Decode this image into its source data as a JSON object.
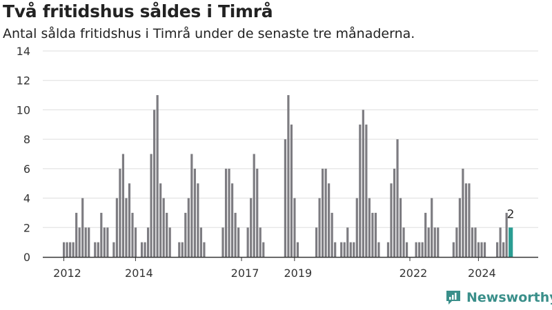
{
  "title": "Två fritidshus såldes i Timrå",
  "subtitle": "Antal sålda fritidshus i Timrå under de senaste tre månaderna.",
  "brand": "Newsworthy",
  "colors": {
    "bar": "#7d7c81",
    "highlight": "#2a9d92",
    "grid": "#dddddd",
    "axis": "#333333",
    "brand": "#3a8f8a"
  },
  "chart_data": {
    "type": "bar",
    "ylim": [
      0,
      14
    ],
    "yticks": [
      0,
      2,
      4,
      6,
      8,
      10,
      12,
      14
    ],
    "xticks": [
      "2012",
      "2014",
      "2017",
      "2019",
      "2022",
      "2024"
    ],
    "series": [
      {
        "values": [
          1,
          1,
          1,
          1,
          3,
          2,
          4,
          2,
          2,
          0,
          1,
          1,
          3,
          2,
          2,
          0,
          1,
          4,
          6,
          7,
          4,
          5,
          3,
          2,
          0,
          1,
          1,
          2,
          7,
          10,
          11,
          5,
          4,
          3,
          2,
          0,
          0,
          1,
          1,
          3,
          4,
          7,
          6,
          5,
          2,
          1,
          0,
          0,
          0,
          0,
          0,
          2,
          6,
          6,
          5,
          3,
          2,
          0,
          0,
          2,
          4,
          7,
          6,
          2,
          1,
          0,
          0,
          0,
          0,
          0,
          0,
          8,
          11,
          9,
          4,
          1,
          0,
          0,
          0,
          0,
          0,
          2,
          4,
          6,
          6,
          5,
          3,
          1,
          0,
          1,
          1,
          2,
          1,
          1,
          4,
          9,
          10,
          9,
          4,
          3,
          3,
          1,
          0,
          0,
          1,
          5,
          6,
          8,
          4,
          2,
          1,
          0,
          0,
          1,
          1,
          1,
          3,
          2,
          4,
          2,
          2,
          0,
          0,
          0,
          0,
          1,
          2,
          4,
          6,
          5,
          5,
          2,
          2,
          1,
          1,
          1,
          0,
          0,
          0,
          1,
          2,
          1,
          3,
          2
        ]
      }
    ],
    "last_value": 2,
    "last_label": "2"
  }
}
